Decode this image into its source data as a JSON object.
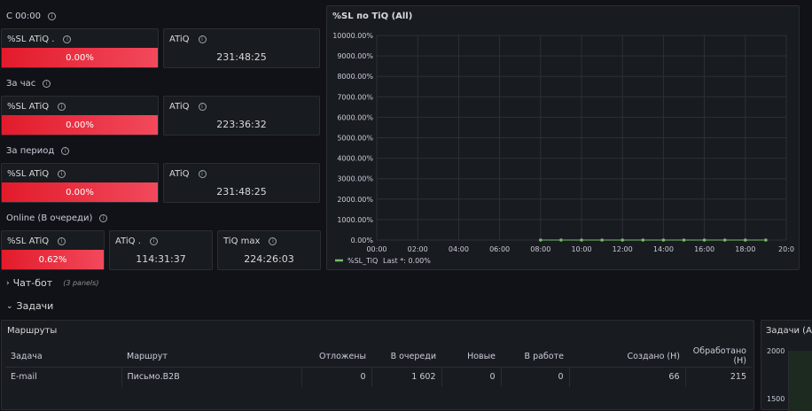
{
  "sections": {
    "since_midnight": "С 00:00",
    "last_hour": "За час",
    "period": "За период",
    "online": "Online (В очереди)"
  },
  "stats": {
    "since_midnight": {
      "sl_title": "%SL ATiQ .",
      "sl_value": "0.00%",
      "atiq_title": "ATiQ",
      "atiq_value": "231:48:25",
      "sl_fraction": 1.0
    },
    "last_hour": {
      "sl_title": "%SL ATiQ",
      "sl_value": "0.00%",
      "atiq_title": "ATiQ",
      "atiq_value": "223:36:32",
      "sl_fraction": 1.0
    },
    "period": {
      "sl_title": "%SL ATiQ",
      "sl_value": "0.00%",
      "atiq_title": "ATiQ",
      "atiq_value": "231:48:25",
      "sl_fraction": 1.0
    },
    "online": {
      "sl_title": "%SL ATiQ",
      "sl_value": "0.62%",
      "atiq_title": "ATiQ .",
      "atiq_value": "114:31:37",
      "tiq_title": "TiQ max",
      "tiq_value": "224:26:03",
      "sl_fraction": 1.0
    }
  },
  "chart_data": {
    "type": "line",
    "title": "%SL по TiQ (All)",
    "y_ticks": [
      "10000.00%",
      "9000.00%",
      "8000.00%",
      "7000.00%",
      "6000.00%",
      "5000.00%",
      "4000.00%",
      "3000.00%",
      "2000.00%",
      "1000.00%",
      "0.00%"
    ],
    "x_ticks": [
      "00:00",
      "02:00",
      "04:00",
      "06:00",
      "08:00",
      "10:00",
      "12:00",
      "14:00",
      "16:00",
      "18:00",
      "20:0"
    ],
    "ylim": [
      0,
      10000
    ],
    "xlim_hours": [
      0,
      20
    ],
    "series": [
      {
        "name": "%SL_TiQ",
        "color": "#73bf69",
        "x_hours": [
          8,
          9,
          10,
          11,
          12,
          13,
          14,
          15,
          16,
          17,
          18,
          19
        ],
        "values": [
          0,
          0,
          0,
          0,
          0,
          0,
          0,
          0,
          0,
          0,
          0,
          0
        ]
      }
    ],
    "legend": {
      "label": "%SL_TiQ",
      "last": "Last *: 0.00%"
    },
    "grid": true
  },
  "rows": {
    "chatbot": {
      "label": "Чат-бот",
      "count": "(3 panels)"
    },
    "tasks": {
      "label": "Задачи"
    }
  },
  "routes": {
    "title": "Маршруты",
    "columns": [
      "Задача",
      "Маршрут",
      "Отложены",
      "В очереди",
      "Новые",
      "В работе",
      "Создано (Н)",
      "Обработано (Н)"
    ],
    "rows": [
      [
        "E-mail",
        "Письмо.B2B",
        "0",
        "1 602",
        "0",
        "0",
        "66",
        "215"
      ]
    ]
  },
  "tasks_panel": {
    "title": "Задачи (All",
    "y_ticks": [
      "2000",
      "1500"
    ]
  },
  "colors": {
    "bg": "#111217",
    "panel": "#181b1f",
    "sl_bar": "#f2495c",
    "series": "#73bf69"
  }
}
